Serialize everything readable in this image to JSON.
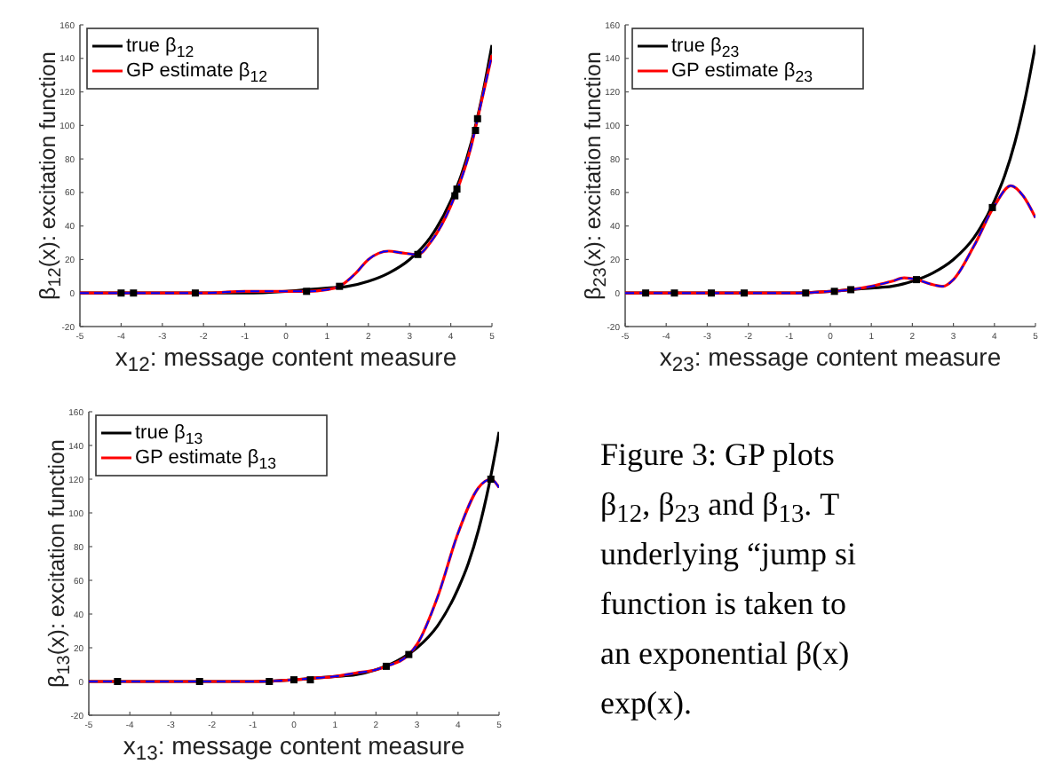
{
  "chart_data": [
    {
      "type": "line",
      "xlabel": "x$_{12}$: message content measure",
      "ylabel": "β$_{12}$(x): excitation function",
      "xlim": [
        -5,
        5
      ],
      "ylim": [
        -20,
        160
      ],
      "xticks": [
        -5,
        -4,
        -3,
        -2,
        -1,
        0,
        1,
        2,
        3,
        4,
        5
      ],
      "yticks": [
        -20,
        0,
        20,
        40,
        60,
        80,
        100,
        120,
        140,
        160
      ],
      "legend": "top left",
      "series": [
        {
          "name": "true β$_{12}$",
          "color": "#000000",
          "x": [
            -5,
            -4,
            -3,
            -2,
            -1,
            0,
            0.5,
            1,
            1.5,
            2,
            2.5,
            3,
            3.5,
            4,
            4.25,
            4.5,
            4.75,
            5
          ],
          "values": [
            0,
            0,
            0,
            0,
            0,
            1,
            2,
            3,
            4,
            7,
            12,
            20,
            33,
            55,
            70,
            90,
            116,
            148
          ]
        },
        {
          "name": "GP estimate β$_{12}$",
          "color": "#ff0000",
          "x": [
            -5,
            -4,
            -3,
            -2,
            -1,
            0,
            0.5,
            1,
            1.3,
            1.7,
            2,
            2.5,
            2.8,
            3.2,
            3.5,
            4,
            4.1,
            4.5,
            4.65,
            5
          ],
          "values": [
            0,
            0,
            0,
            0,
            1,
            1,
            1,
            2,
            4,
            12,
            20,
            25,
            24,
            23,
            30,
            52,
            58,
            88,
            104,
            142
          ]
        },
        {
          "color": "#0000ff",
          "line_style": "dashed",
          "x": [
            -5,
            -4,
            -3,
            -2,
            -1,
            0,
            0.5,
            1,
            1.3,
            1.7,
            2,
            2.5,
            2.8,
            3.2,
            3.5,
            4,
            4.1,
            4.5,
            4.65,
            5
          ],
          "values": [
            0,
            0,
            0,
            0,
            1,
            1,
            1,
            2,
            4,
            12,
            20,
            25,
            24,
            23,
            30,
            52,
            58,
            88,
            104,
            142
          ]
        },
        {
          "type": "scatter",
          "marker": "square",
          "color": "#000000",
          "x": [
            -4,
            -3.7,
            -2.2,
            0.5,
            1.3,
            3.2,
            4.1,
            4.15,
            4.6,
            4.65
          ],
          "values": [
            0,
            0,
            0,
            1,
            4,
            23,
            58,
            62,
            97,
            104
          ]
        }
      ]
    },
    {
      "type": "line",
      "xlabel": "x$_{23}$: message content measure",
      "ylabel": "β$_{23}$(x): excitation function",
      "xlim": [
        -5,
        5
      ],
      "ylim": [
        -20,
        160
      ],
      "xticks": [
        -5,
        -4,
        -3,
        -2,
        -1,
        0,
        1,
        2,
        3,
        4,
        5
      ],
      "yticks": [
        -20,
        0,
        20,
        40,
        60,
        80,
        100,
        120,
        140,
        160
      ],
      "legend": "top left",
      "series": [
        {
          "name": "true β$_{23}$",
          "color": "#000000",
          "x": [
            -5,
            -4,
            -3,
            -2,
            -1,
            0,
            0.5,
            1,
            1.5,
            2,
            2.5,
            3,
            3.5,
            4,
            4.25,
            4.5,
            4.75,
            5
          ],
          "values": [
            0,
            0,
            0,
            0,
            0,
            1,
            2,
            3,
            4,
            7,
            12,
            20,
            33,
            55,
            70,
            90,
            116,
            148
          ]
        },
        {
          "name": "GP estimate β$_{23}$",
          "color": "#ff0000",
          "x": [
            -5,
            -4,
            -3,
            -2,
            -1,
            0,
            0.5,
            1,
            1.5,
            1.8,
            2.1,
            2.5,
            2.75,
            3,
            3.5,
            4,
            4.4,
            4.7,
            5
          ],
          "values": [
            0,
            0,
            0,
            0,
            0,
            1,
            2,
            4,
            7,
            9,
            8,
            5,
            4,
            8,
            28,
            52,
            64,
            58,
            45
          ]
        },
        {
          "color": "#0000ff",
          "line_style": "dashed",
          "x": [
            -5,
            -4,
            -3,
            -2,
            -1,
            0,
            0.5,
            1,
            1.5,
            1.8,
            2.1,
            2.5,
            2.75,
            3,
            3.5,
            4,
            4.4,
            4.7,
            5
          ],
          "values": [
            0,
            0,
            0,
            0,
            0,
            1,
            2,
            4,
            7,
            9,
            8,
            5,
            4,
            8,
            28,
            52,
            64,
            58,
            45
          ]
        },
        {
          "type": "scatter",
          "marker": "square",
          "color": "#000000",
          "x": [
            -4.5,
            -3.8,
            -2.9,
            -2.1,
            -0.6,
            0.1,
            0.5,
            2.1,
            3.95
          ],
          "values": [
            0,
            0,
            0,
            0,
            0,
            1,
            2,
            8,
            51
          ]
        }
      ]
    },
    {
      "type": "line",
      "xlabel": "x$_{13}$: message content measure",
      "ylabel": "β$_{13}$(x): excitation function",
      "xlim": [
        -5,
        5
      ],
      "ylim": [
        -20,
        160
      ],
      "xticks": [
        -5,
        -4,
        -3,
        -2,
        -1,
        0,
        1,
        2,
        3,
        4,
        5
      ],
      "yticks": [
        -20,
        0,
        20,
        40,
        60,
        80,
        100,
        120,
        140,
        160
      ],
      "legend": "top left",
      "series": [
        {
          "name": "true β$_{13}$",
          "color": "#000000",
          "x": [
            -5,
            -4,
            -3,
            -2,
            -1,
            0,
            0.5,
            1,
            1.5,
            2,
            2.5,
            3,
            3.5,
            4,
            4.25,
            4.5,
            4.75,
            5
          ],
          "values": [
            0,
            0,
            0,
            0,
            0,
            1,
            2,
            3,
            4,
            7,
            12,
            20,
            33,
            55,
            70,
            90,
            116,
            148
          ]
        },
        {
          "name": "GP estimate β$_{13}$",
          "color": "#ff0000",
          "x": [
            -5,
            -4,
            -3,
            -2,
            -1,
            0,
            0.5,
            1,
            1.5,
            2,
            2.25,
            2.8,
            3,
            3.5,
            4,
            4.5,
            4.8,
            5
          ],
          "values": [
            0,
            0,
            0,
            0,
            0,
            1,
            2,
            3,
            5,
            7,
            9,
            16,
            22,
            50,
            88,
            115,
            120,
            115
          ]
        },
        {
          "color": "#0000ff",
          "line_style": "dashed",
          "x": [
            -5,
            -4,
            -3,
            -2,
            -1,
            0,
            0.5,
            1,
            1.5,
            2,
            2.25,
            2.8,
            3,
            3.5,
            4,
            4.5,
            4.8,
            5
          ],
          "values": [
            0,
            0,
            0,
            0,
            0,
            1,
            2,
            3,
            5,
            7,
            9,
            16,
            22,
            50,
            88,
            115,
            120,
            115
          ]
        },
        {
          "type": "scatter",
          "marker": "square",
          "color": "#000000",
          "x": [
            -4.3,
            -2.3,
            -0.6,
            0,
            0.4,
            2.25,
            2.8,
            4.8
          ],
          "values": [
            0,
            0,
            0,
            1,
            1,
            9,
            16,
            120
          ]
        }
      ]
    },
    {
      "type": "other",
      "annotations": [
        "Figure 3:  GP plots",
        "β$_{12}$, β$_{23}$ and β$_{13}$.  T",
        "underlying “jump si",
        "function is taken to",
        "an exponential β(x)",
        "exp(x)."
      ]
    }
  ]
}
